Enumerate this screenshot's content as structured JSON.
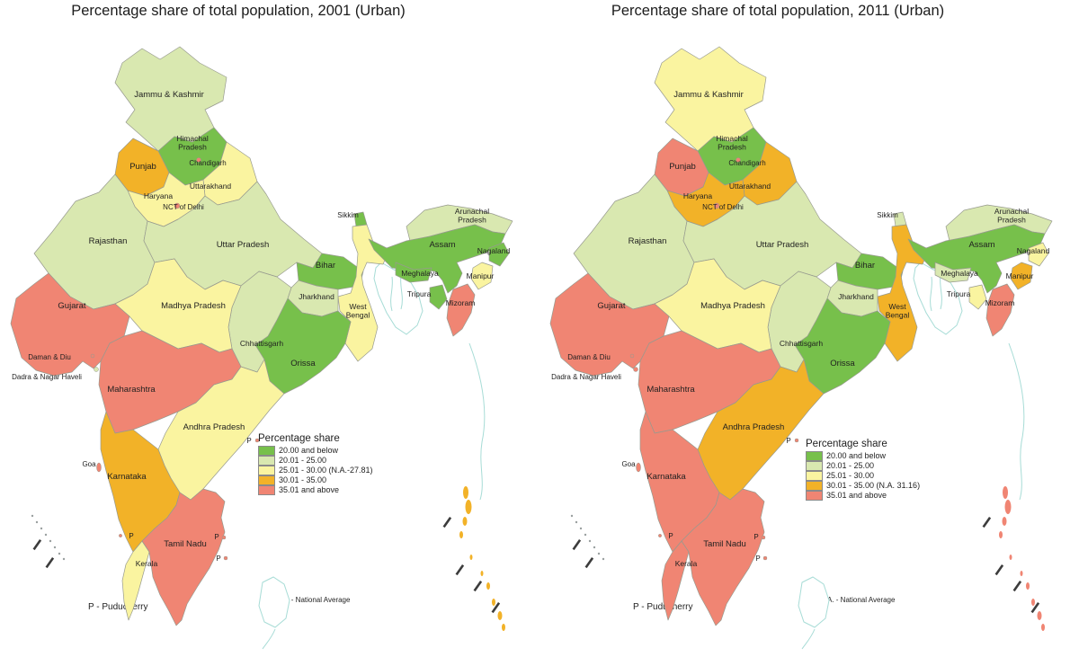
{
  "panels": [
    {
      "year": "2001",
      "title": "Percentage share of total population, 2001 (Urban)",
      "legend": {
        "title": "Percentage share",
        "items": [
          {
            "label": "20.00 and below",
            "color": "#77c04b"
          },
          {
            "label": "20.01 - 25.00",
            "color": "#d9e8b0"
          },
          {
            "label": "25.01 - 30.00 (N.A.-27.81)",
            "color": "#faf4a0"
          },
          {
            "label": "30.01 - 35.00",
            "color": "#f2b228"
          },
          {
            "label": "35.01 and above",
            "color": "#f08573"
          }
        ]
      },
      "notes": {
        "p": "P - Puducherry",
        "na": "N.A.  - National Average"
      }
    },
    {
      "year": "2011",
      "title": "Percentage share of total population, 2011 (Urban)",
      "legend": {
        "title": "Percentage share",
        "items": [
          {
            "label": "20.00 and below",
            "color": "#77c04b"
          },
          {
            "label": "20.01 - 25.00",
            "color": "#d9e8b0"
          },
          {
            "label": "25.01 - 30.00",
            "color": "#faf4a0"
          },
          {
            "label": "30.01 - 35.00 (N.A. 31.16)",
            "color": "#f2b228"
          },
          {
            "label": "35.01 and above",
            "color": "#f08573"
          }
        ]
      },
      "notes": {
        "p": "P - Puducherry",
        "na": "N.A.  - National Average"
      }
    }
  ],
  "palette": {
    "c1": "#77c04b",
    "c2": "#d9e8b0",
    "c3": "#faf4a0",
    "c4": "#f2b228",
    "c5": "#f08573"
  },
  "puducherry_marker": "P",
  "map_data": {
    "type": "choropleth",
    "measure": "Percentage share of total population (Urban)",
    "classes": {
      "c1": "20.00 and below",
      "c2": "20.01 - 25.00",
      "c3": "25.01 - 30.00",
      "c4": "30.01 - 35.00",
      "c5": "35.01 and above"
    },
    "national_average": {
      "2001": 27.81,
      "2011": 31.16
    },
    "states": [
      {
        "id": "jammu-kashmir",
        "label": "Jammu & Kashmir",
        "class_2001": "c2",
        "class_2011": "c3"
      },
      {
        "id": "himachal-pradesh",
        "label": "Himachal Pradesh",
        "class_2001": "c1",
        "class_2011": "c1"
      },
      {
        "id": "punjab",
        "label": "Punjab",
        "class_2001": "c4",
        "class_2011": "c5"
      },
      {
        "id": "uttarakhand",
        "label": "Uttarakhand",
        "class_2001": "c3",
        "class_2011": "c4"
      },
      {
        "id": "haryana",
        "label": "Haryana",
        "class_2001": "c3",
        "class_2011": "c4"
      },
      {
        "id": "rajasthan",
        "label": "Rajasthan",
        "class_2001": "c2",
        "class_2011": "c2"
      },
      {
        "id": "uttar-pradesh",
        "label": "Uttar Pradesh",
        "class_2001": "c2",
        "class_2011": "c2"
      },
      {
        "id": "bihar",
        "label": "Bihar",
        "class_2001": "c1",
        "class_2011": "c1"
      },
      {
        "id": "sikkim",
        "label": "Sikkim",
        "class_2001": "c1",
        "class_2011": "c2"
      },
      {
        "id": "west-bengal",
        "label": "West Bengal",
        "class_2001": "c3",
        "class_2011": "c4"
      },
      {
        "id": "jharkhand",
        "label": "Jharkhand",
        "class_2001": "c2",
        "class_2011": "c2"
      },
      {
        "id": "orissa",
        "label": "Orissa",
        "class_2001": "c1",
        "class_2011": "c1"
      },
      {
        "id": "chhattisgarh",
        "label": "Chhattisgarh",
        "class_2001": "c2",
        "class_2011": "c2"
      },
      {
        "id": "madhya-pradesh",
        "label": "Madhya Pradesh",
        "class_2001": "c3",
        "class_2011": "c3"
      },
      {
        "id": "gujarat",
        "label": "Gujarat",
        "class_2001": "c5",
        "class_2011": "c5"
      },
      {
        "id": "maharashtra",
        "label": "Maharashtra",
        "class_2001": "c5",
        "class_2011": "c5"
      },
      {
        "id": "andhra-pradesh",
        "label": "Andhra Pradesh",
        "class_2001": "c3",
        "class_2011": "c4"
      },
      {
        "id": "karnataka",
        "label": "Karnataka",
        "class_2001": "c4",
        "class_2011": "c5"
      },
      {
        "id": "kerala",
        "label": "Kerala",
        "class_2001": "c3",
        "class_2011": "c5"
      },
      {
        "id": "tamil-nadu",
        "label": "Tamil Nadu",
        "class_2001": "c5",
        "class_2011": "c5"
      },
      {
        "id": "arunachal-pradesh",
        "label": "Arunachal Pradesh",
        "class_2001": "c2",
        "class_2011": "c2"
      },
      {
        "id": "assam",
        "label": "Assam",
        "class_2001": "c1",
        "class_2011": "c1"
      },
      {
        "id": "nagaland",
        "label": "Nagaland",
        "class_2001": "c1",
        "class_2011": "c3"
      },
      {
        "id": "meghalaya",
        "label": "Meghalaya",
        "class_2001": "c1",
        "class_2011": "c2"
      },
      {
        "id": "manipur",
        "label": "Manipur",
        "class_2001": "c3",
        "class_2011": "c4"
      },
      {
        "id": "mizoram",
        "label": "Mizoram",
        "class_2001": "c5",
        "class_2011": "c5"
      },
      {
        "id": "tripura",
        "label": "Tripura",
        "class_2001": "c1",
        "class_2011": "c3"
      },
      {
        "id": "chandigarh",
        "label": "Chandigarh",
        "class_2001": "c5",
        "class_2011": "c5"
      },
      {
        "id": "nct-delhi",
        "label": "NCT of Delhi",
        "class_2001": "c5",
        "class_2011": "c5"
      },
      {
        "id": "daman-diu",
        "label": "Daman & Diu",
        "class_2001": "c5",
        "class_2011": "c5"
      },
      {
        "id": "dadra-nagar-haveli",
        "label": "Dadra & Nagar Haveli",
        "class_2001": "c2",
        "class_2011": "c5"
      },
      {
        "id": "goa",
        "label": "Goa",
        "class_2001": "c5",
        "class_2011": "c5"
      },
      {
        "id": "puducherry",
        "label": "P",
        "class_2001": "c5",
        "class_2011": "c5"
      },
      {
        "id": "andaman-nicobar",
        "label": "",
        "class_2001": "c4",
        "class_2011": "c5"
      }
    ]
  }
}
